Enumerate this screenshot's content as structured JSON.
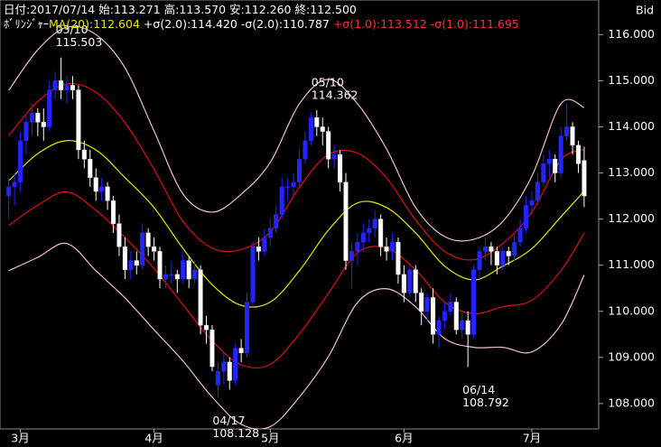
{
  "chart_data": {
    "type": "candlestick",
    "info": [
      "日付:2017/07/14",
      "始:113.271",
      "高:113.570",
      "安:112.260",
      "終:112.500"
    ],
    "indicator_label": "ﾎﾞﾘﾝｼﾞｬｰ",
    "price_side": "Bid",
    "up_color": "#2424ff",
    "down_color": "#ffffff",
    "ylim": [
      107.45,
      116.75
    ],
    "yticks": [
      {
        "value": 108,
        "label": "108.000"
      },
      {
        "value": 109,
        "label": "109.000"
      },
      {
        "value": 110,
        "label": "110.000"
      },
      {
        "value": 111,
        "label": "111.000"
      },
      {
        "value": 112,
        "label": "112.000"
      },
      {
        "value": 113,
        "label": "113.000"
      },
      {
        "value": 114,
        "label": "114.000"
      },
      {
        "value": 115,
        "label": "115.000"
      },
      {
        "value": 116,
        "label": "116.000"
      }
    ],
    "xlim": [
      -1.5,
      101.5
    ],
    "xticks": [
      {
        "value": 2,
        "label": "3月"
      },
      {
        "value": 25,
        "label": "4月"
      },
      {
        "value": 45,
        "label": "5月"
      },
      {
        "value": 68,
        "label": "6月"
      },
      {
        "value": 90,
        "label": "7月"
      }
    ],
    "candles": [
      [
        112.5,
        112.9,
        112.0,
        112.7
      ],
      [
        112.7,
        113.0,
        112.3,
        112.8
      ],
      [
        112.8,
        113.9,
        112.6,
        113.7
      ],
      [
        113.7,
        114.3,
        113.4,
        114.1
      ],
      [
        114.1,
        114.5,
        113.8,
        114.3
      ],
      [
        114.3,
        114.4,
        113.8,
        114.1
      ],
      [
        114.1,
        114.4,
        113.7,
        114.0
      ],
      [
        114.0,
        115.0,
        113.9,
        114.8
      ],
      [
        114.8,
        115.2,
        114.6,
        115.0
      ],
      [
        115.0,
        115.503,
        114.6,
        114.8
      ],
      [
        114.8,
        115.1,
        114.5,
        114.9
      ],
      [
        114.9,
        115.1,
        114.6,
        114.8
      ],
      [
        114.8,
        114.9,
        113.3,
        113.5
      ],
      [
        113.5,
        113.7,
        113.1,
        113.3
      ],
      [
        113.3,
        113.5,
        112.7,
        112.9
      ],
      [
        112.9,
        113.1,
        112.4,
        112.6
      ],
      [
        112.6,
        112.9,
        112.4,
        112.7
      ],
      [
        112.7,
        112.8,
        112.2,
        112.4
      ],
      [
        112.4,
        112.5,
        111.7,
        111.9
      ],
      [
        111.9,
        112.1,
        111.2,
        111.4
      ],
      [
        111.4,
        111.6,
        110.7,
        110.9
      ],
      [
        110.9,
        111.3,
        110.7,
        111.1
      ],
      [
        111.1,
        111.3,
        110.8,
        111.0
      ],
      [
        111.0,
        111.9,
        110.9,
        111.7
      ],
      [
        111.7,
        111.8,
        111.2,
        111.4
      ],
      [
        111.4,
        111.6,
        111.1,
        111.3
      ],
      [
        111.3,
        111.4,
        110.5,
        110.7
      ],
      [
        110.7,
        111.0,
        110.5,
        110.8
      ],
      [
        110.8,
        111.1,
        110.6,
        110.8
      ],
      [
        110.8,
        110.9,
        110.4,
        110.7
      ],
      [
        110.7,
        111.3,
        110.6,
        111.1
      ],
      [
        111.1,
        111.2,
        110.5,
        110.7
      ],
      [
        110.7,
        111.1,
        110.6,
        110.9
      ],
      [
        110.9,
        111.0,
        109.5,
        109.7
      ],
      [
        109.7,
        109.9,
        109.3,
        109.6
      ],
      [
        109.6,
        109.7,
        108.7,
        108.8
      ],
      [
        108.4,
        108.9,
        108.128,
        108.7
      ],
      [
        108.7,
        109.1,
        108.4,
        108.9
      ],
      [
        108.9,
        109.0,
        108.3,
        108.5
      ],
      [
        108.5,
        109.3,
        108.4,
        109.2
      ],
      [
        109.2,
        109.4,
        108.9,
        109.1
      ],
      [
        109.1,
        110.4,
        109.0,
        110.2
      ],
      [
        110.2,
        111.5,
        110.1,
        111.4
      ],
      [
        111.4,
        111.6,
        111.1,
        111.3
      ],
      [
        111.3,
        111.8,
        111.2,
        111.6
      ],
      [
        111.6,
        112.0,
        111.4,
        111.8
      ],
      [
        111.8,
        112.3,
        111.7,
        112.1
      ],
      [
        112.1,
        112.9,
        112.0,
        112.7
      ],
      [
        112.7,
        112.9,
        112.4,
        112.7
      ],
      [
        112.7,
        113.0,
        112.5,
        112.8
      ],
      [
        112.8,
        113.5,
        112.7,
        113.3
      ],
      [
        113.3,
        113.9,
        113.2,
        113.7
      ],
      [
        113.7,
        114.3,
        113.6,
        114.2
      ],
      [
        114.2,
        114.362,
        113.8,
        114.0
      ],
      [
        114.0,
        114.2,
        113.6,
        113.9
      ],
      [
        113.9,
        114.0,
        113.1,
        113.3
      ],
      [
        113.3,
        113.6,
        113.1,
        113.4
      ],
      [
        113.4,
        113.5,
        112.6,
        112.8
      ],
      [
        112.8,
        113.0,
        110.9,
        111.1
      ],
      [
        111.1,
        111.5,
        110.5,
        111.3
      ],
      [
        111.3,
        111.7,
        111.0,
        111.5
      ],
      [
        111.5,
        111.9,
        111.3,
        111.7
      ],
      [
        111.7,
        112.0,
        111.5,
        111.8
      ],
      [
        111.8,
        112.2,
        111.6,
        112.0
      ],
      [
        112.0,
        112.1,
        111.2,
        111.4
      ],
      [
        111.4,
        111.6,
        111.1,
        111.3
      ],
      [
        111.3,
        111.7,
        111.1,
        111.5
      ],
      [
        111.5,
        111.6,
        110.6,
        110.8
      ],
      [
        110.8,
        111.0,
        110.2,
        110.4
      ],
      [
        110.4,
        111.0,
        110.3,
        110.9
      ],
      [
        110.9,
        111.0,
        110.2,
        110.4
      ],
      [
        110.4,
        110.5,
        109.7,
        110.0
      ],
      [
        110.0,
        110.4,
        109.8,
        110.3
      ],
      [
        110.3,
        110.5,
        109.3,
        109.5
      ],
      [
        109.5,
        109.9,
        109.2,
        109.8
      ],
      [
        109.8,
        110.2,
        109.6,
        110.0
      ],
      [
        110.0,
        110.4,
        109.9,
        110.2
      ],
      [
        110.2,
        110.3,
        109.5,
        109.6
      ],
      [
        109.6,
        110.0,
        109.4,
        109.8
      ],
      [
        109.8,
        110.0,
        108.792,
        109.5
      ],
      [
        109.5,
        111.0,
        109.4,
        110.9
      ],
      [
        110.9,
        111.4,
        110.7,
        111.3
      ],
      [
        111.3,
        111.6,
        111.1,
        111.4
      ],
      [
        111.4,
        111.5,
        111.0,
        111.3
      ],
      [
        111.3,
        111.4,
        110.8,
        111.0
      ],
      [
        111.0,
        111.4,
        110.9,
        111.3
      ],
      [
        111.3,
        111.4,
        111.0,
        111.2
      ],
      [
        111.2,
        111.7,
        111.1,
        111.5
      ],
      [
        111.5,
        112.0,
        111.4,
        111.8
      ],
      [
        111.8,
        112.5,
        111.7,
        112.3
      ],
      [
        112.3,
        112.6,
        112.1,
        112.4
      ],
      [
        112.4,
        113.0,
        112.3,
        112.8
      ],
      [
        112.8,
        113.4,
        112.7,
        113.2
      ],
      [
        113.2,
        113.5,
        112.9,
        113.3
      ],
      [
        113.3,
        113.4,
        112.8,
        113.0
      ],
      [
        113.0,
        114.0,
        112.9,
        113.8
      ],
      [
        113.8,
        114.5,
        113.7,
        114.0
      ],
      [
        114.0,
        114.1,
        113.4,
        113.6
      ],
      [
        113.6,
        113.7,
        113.0,
        113.2
      ],
      [
        113.271,
        113.57,
        112.26,
        112.5
      ]
    ],
    "series": [
      {
        "name": "MA(20):112.604",
        "color": "#e8e800",
        "x": [
          0,
          5,
          10,
          15,
          20,
          25,
          30,
          35,
          40,
          45,
          50,
          55,
          60,
          65,
          70,
          75,
          80,
          85,
          90,
          95,
          99
        ],
        "values": [
          112.83,
          113.42,
          113.7,
          113.5,
          112.9,
          112.25,
          111.36,
          110.58,
          110.13,
          110.2,
          110.88,
          111.76,
          112.35,
          112.25,
          111.7,
          110.98,
          110.68,
          110.98,
          111.36,
          112.05,
          112.604
        ]
      },
      {
        "name": "+σ(2.0):114.420",
        "color": "#f0c0c8",
        "x": [
          0,
          5,
          10,
          15,
          20,
          25,
          30,
          35,
          40,
          45,
          50,
          55,
          60,
          65,
          70,
          75,
          80,
          85,
          90,
          95,
          99
        ],
        "values": [
          114.79,
          115.67,
          116.16,
          116.0,
          115.28,
          113.91,
          112.54,
          112.15,
          112.54,
          113.23,
          114.5,
          115.03,
          114.5,
          113.52,
          112.25,
          111.62,
          111.56,
          111.95,
          112.93,
          114.5,
          114.42
        ]
      },
      {
        "name": "-σ(2.0):110.787",
        "color": "#f0c0c8",
        "x": [
          0,
          5,
          10,
          15,
          20,
          25,
          30,
          35,
          40,
          45,
          50,
          55,
          60,
          65,
          70,
          75,
          80,
          85,
          90,
          95,
          99
        ],
        "values": [
          110.88,
          111.17,
          111.47,
          110.88,
          110.29,
          109.6,
          108.92,
          108.14,
          107.55,
          107.5,
          108.14,
          109.02,
          110.19,
          110.49,
          110.1,
          109.41,
          109.22,
          109.22,
          109.12,
          109.71,
          110.787
        ]
      },
      {
        "name": "+σ(1.0):113.512",
        "color": "#e01010",
        "x": [
          0,
          5,
          10,
          15,
          20,
          25,
          30,
          35,
          40,
          45,
          50,
          55,
          60,
          65,
          70,
          75,
          80,
          85,
          90,
          95,
          99
        ],
        "values": [
          113.81,
          114.55,
          114.93,
          114.75,
          114.09,
          113.08,
          111.95,
          111.37,
          111.34,
          111.72,
          112.69,
          113.4,
          113.43,
          112.89,
          111.98,
          111.3,
          111.12,
          111.47,
          112.15,
          113.28,
          113.512
        ]
      },
      {
        "name": "-σ(1.0):111.695",
        "color": "#e01010",
        "x": [
          0,
          5,
          10,
          15,
          20,
          25,
          30,
          35,
          40,
          45,
          50,
          55,
          60,
          65,
          70,
          75,
          80,
          85,
          90,
          95,
          99
        ],
        "values": [
          111.86,
          112.3,
          112.59,
          112.19,
          111.6,
          110.93,
          110.14,
          109.36,
          108.84,
          108.85,
          109.51,
          110.39,
          111.27,
          111.37,
          110.9,
          110.2,
          109.95,
          110.1,
          110.24,
          110.88,
          111.695
        ]
      }
    ],
    "annotations": [
      {
        "label": "03/10",
        "value": 115.503,
        "side": "above"
      },
      {
        "label": "04/17",
        "value": 108.128,
        "side": "below"
      },
      {
        "label": "05/10",
        "value": 114.362,
        "side": "above"
      },
      {
        "label": "06/14",
        "value": 108.792,
        "side": "below"
      }
    ]
  }
}
